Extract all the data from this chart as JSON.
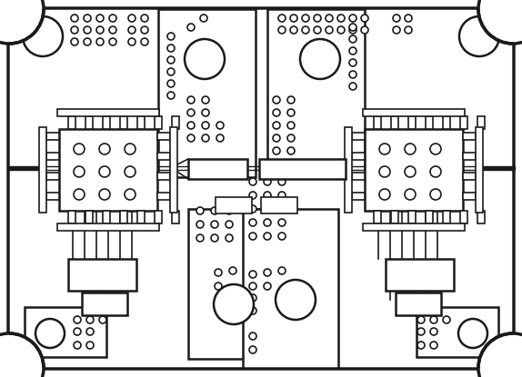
{
  "bg_color": "#ffffff",
  "line_color": "#1a1a1a",
  "fig_width": 5.74,
  "fig_height": 4.15,
  "dpi": 100
}
